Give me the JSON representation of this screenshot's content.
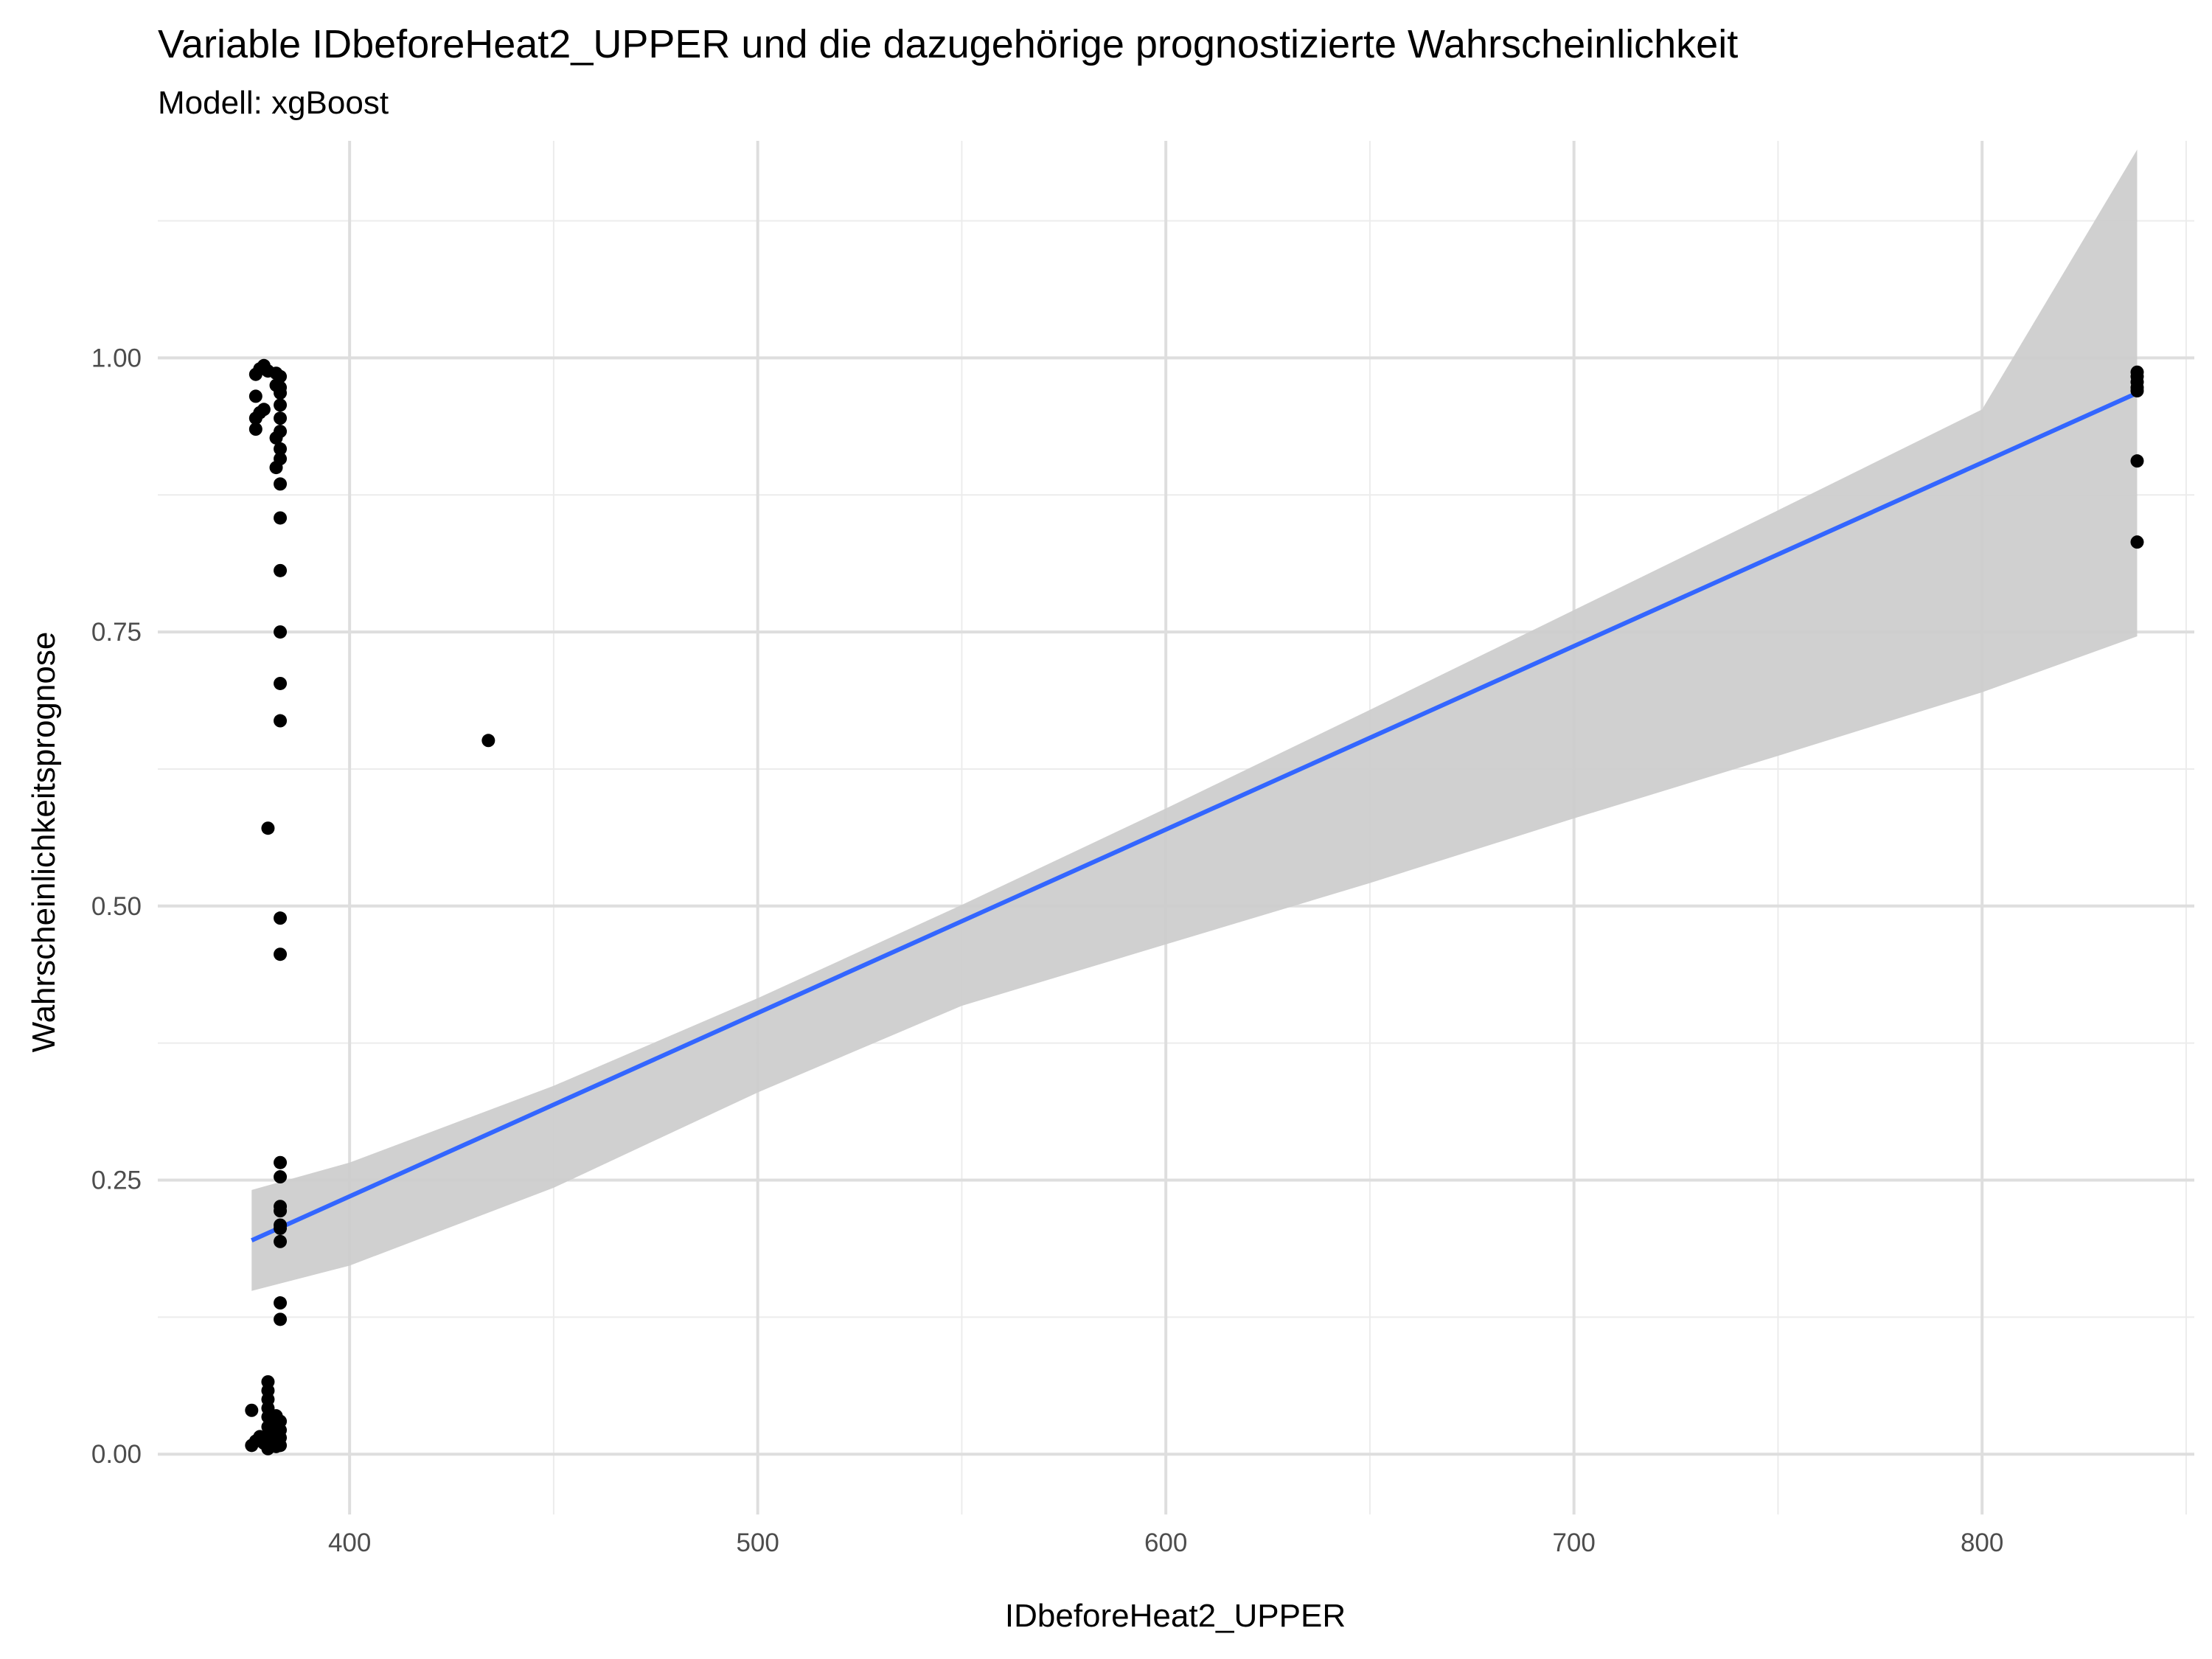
{
  "chart_data": {
    "type": "scatter",
    "title": "Variable IDbeforeHeat2_UPPER und die dazugehörige prognostizierte Wahrscheinlichkeit",
    "subtitle": "Modell: xgBoost",
    "xlabel": "IDbeforeHeat2_UPPER",
    "ylabel": "Wahrscheinlichkeitsprognose",
    "xlim": [
      353,
      852
    ],
    "ylim": [
      -0.055,
      1.198
    ],
    "x_ticks": [
      400,
      500,
      600,
      700,
      800
    ],
    "x_tick_labels": [
      "400",
      "500",
      "600",
      "700",
      "800"
    ],
    "x_minor_ticks": [
      450,
      550,
      650,
      750,
      850
    ],
    "y_ticks": [
      0,
      0.25,
      0.5,
      0.75,
      1.0
    ],
    "y_tick_labels": [
      "0.00",
      "0.25",
      "0.50",
      "0.75",
      "1.00"
    ],
    "y_minor_ticks": [
      0.125,
      0.375,
      0.625,
      0.875,
      1.125
    ],
    "grid": true,
    "legend": "none",
    "colors": {
      "points": "#000000",
      "fit_line": "#3366ff",
      "confidence_band": "#cccccc"
    },
    "points": [
      {
        "x": 377,
        "y": 0.985
      },
      {
        "x": 377,
        "y": 0.965
      },
      {
        "x": 377,
        "y": 0.945
      },
      {
        "x": 377,
        "y": 0.935
      },
      {
        "x": 378,
        "y": 0.99
      },
      {
        "x": 378,
        "y": 0.95
      },
      {
        "x": 379,
        "y": 0.993
      },
      {
        "x": 379,
        "y": 0.953
      },
      {
        "x": 380,
        "y": 0.988
      },
      {
        "x": 382,
        "y": 0.986
      },
      {
        "x": 382,
        "y": 0.975
      },
      {
        "x": 382,
        "y": 0.927
      },
      {
        "x": 382,
        "y": 0.9
      },
      {
        "x": 383,
        "y": 0.983
      },
      {
        "x": 383,
        "y": 0.973
      },
      {
        "x": 383,
        "y": 0.968
      },
      {
        "x": 383,
        "y": 0.957
      },
      {
        "x": 383,
        "y": 0.945
      },
      {
        "x": 383,
        "y": 0.933
      },
      {
        "x": 383,
        "y": 0.917
      },
      {
        "x": 383,
        "y": 0.908
      },
      {
        "x": 383,
        "y": 0.885
      },
      {
        "x": 383,
        "y": 0.854
      },
      {
        "x": 383,
        "y": 0.806
      },
      {
        "x": 383,
        "y": 0.75
      },
      {
        "x": 383,
        "y": 0.703
      },
      {
        "x": 383,
        "y": 0.669
      },
      {
        "x": 380,
        "y": 0.571
      },
      {
        "x": 383,
        "y": 0.489
      },
      {
        "x": 383,
        "y": 0.456
      },
      {
        "x": 434,
        "y": 0.651
      },
      {
        "x": 383,
        "y": 0.266
      },
      {
        "x": 383,
        "y": 0.253
      },
      {
        "x": 383,
        "y": 0.226
      },
      {
        "x": 383,
        "y": 0.222
      },
      {
        "x": 383,
        "y": 0.209
      },
      {
        "x": 383,
        "y": 0.206
      },
      {
        "x": 383,
        "y": 0.194
      },
      {
        "x": 383,
        "y": 0.138
      },
      {
        "x": 383,
        "y": 0.123
      },
      {
        "x": 376,
        "y": 0.04
      },
      {
        "x": 376,
        "y": 0.008
      },
      {
        "x": 377,
        "y": 0.012
      },
      {
        "x": 378,
        "y": 0.016
      },
      {
        "x": 379,
        "y": 0.01
      },
      {
        "x": 380,
        "y": 0.066
      },
      {
        "x": 380,
        "y": 0.058
      },
      {
        "x": 380,
        "y": 0.05
      },
      {
        "x": 380,
        "y": 0.042
      },
      {
        "x": 380,
        "y": 0.034
      },
      {
        "x": 380,
        "y": 0.025
      },
      {
        "x": 380,
        "y": 0.018
      },
      {
        "x": 380,
        "y": 0.01
      },
      {
        "x": 380,
        "y": 0.005
      },
      {
        "x": 381,
        "y": 0.03
      },
      {
        "x": 381,
        "y": 0.022
      },
      {
        "x": 381,
        "y": 0.014
      },
      {
        "x": 382,
        "y": 0.035
      },
      {
        "x": 382,
        "y": 0.028
      },
      {
        "x": 382,
        "y": 0.02
      },
      {
        "x": 382,
        "y": 0.012
      },
      {
        "x": 382,
        "y": 0.007
      },
      {
        "x": 383,
        "y": 0.03
      },
      {
        "x": 383,
        "y": 0.022
      },
      {
        "x": 383,
        "y": 0.015
      },
      {
        "x": 383,
        "y": 0.008
      },
      {
        "x": 838,
        "y": 0.987
      },
      {
        "x": 838,
        "y": 0.983
      },
      {
        "x": 838,
        "y": 0.978
      },
      {
        "x": 838,
        "y": 0.973
      },
      {
        "x": 838,
        "y": 0.97
      },
      {
        "x": 838,
        "y": 0.906
      },
      {
        "x": 838,
        "y": 0.832
      }
    ],
    "fit_line": [
      {
        "x": 376,
        "y": 0.195
      },
      {
        "x": 838,
        "y": 0.968
      }
    ],
    "confidence_band": {
      "x": [
        376,
        400,
        450,
        500,
        550,
        600,
        650,
        700,
        750,
        800,
        838
      ],
      "upper": [
        0.241,
        0.266,
        0.336,
        0.416,
        0.501,
        0.589,
        0.679,
        0.77,
        0.861,
        0.953,
        1.19
      ],
      "lower": [
        0.149,
        0.172,
        0.243,
        0.33,
        0.409,
        0.465,
        0.521,
        0.58,
        0.637,
        0.695,
        0.746
      ]
    }
  }
}
